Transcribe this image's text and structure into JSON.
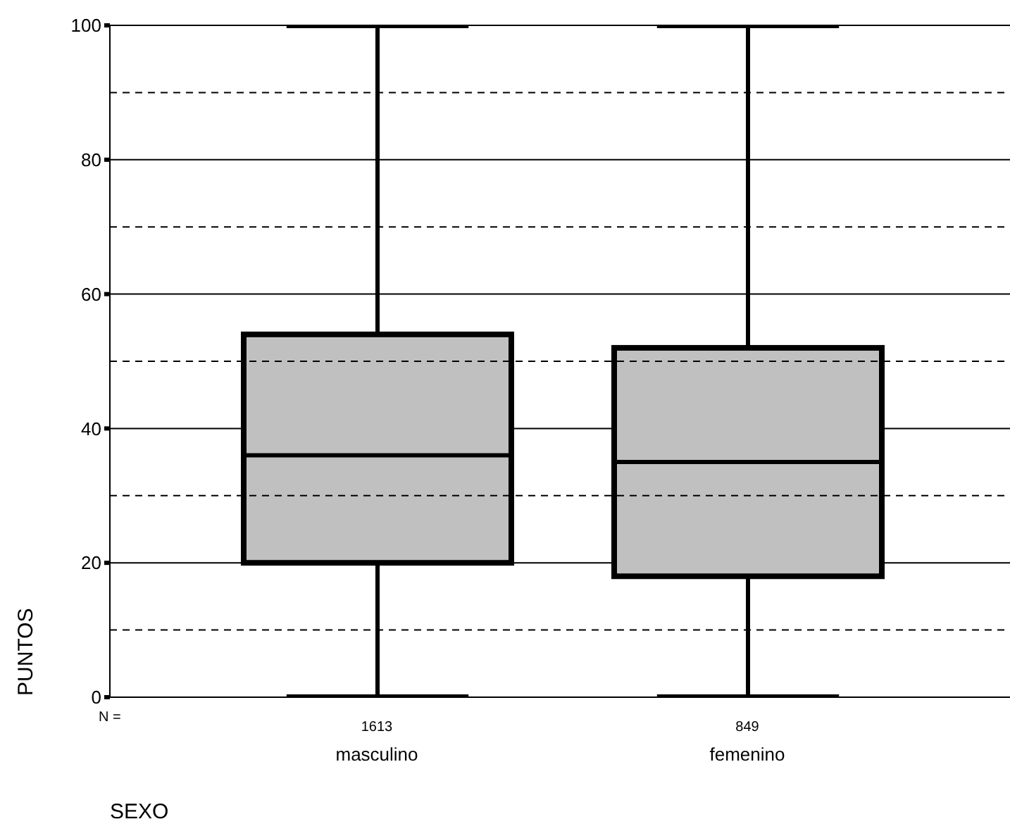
{
  "chart_data": {
    "type": "box",
    "xlabel": "SEXO",
    "ylabel": "PUNTOS",
    "categories": [
      "masculino",
      "femenino"
    ],
    "series": [
      {
        "color": "#c0c0c0",
        "boxes": [
          {
            "low": 0,
            "q1": 20,
            "median": 36,
            "q3": 54,
            "high": 100
          },
          {
            "low": 0,
            "q1": 18,
            "median": 35,
            "q3": 52,
            "high": 100
          }
        ]
      }
    ],
    "ylim": [
      0,
      100
    ],
    "yticks": [
      0,
      20,
      40,
      60,
      80,
      100
    ],
    "grid": "y",
    "ref_lines": [
      {
        "axis": "y",
        "value": 10,
        "line_style": "dashed"
      },
      {
        "axis": "y",
        "value": 30,
        "line_style": "dashed"
      },
      {
        "axis": "y",
        "value": 50,
        "line_style": "dashed"
      },
      {
        "axis": "y",
        "value": 70,
        "line_style": "dashed"
      },
      {
        "axis": "y",
        "value": 90,
        "line_style": "dashed"
      }
    ],
    "annotations": [
      "N =",
      "1613",
      "849"
    ]
  }
}
